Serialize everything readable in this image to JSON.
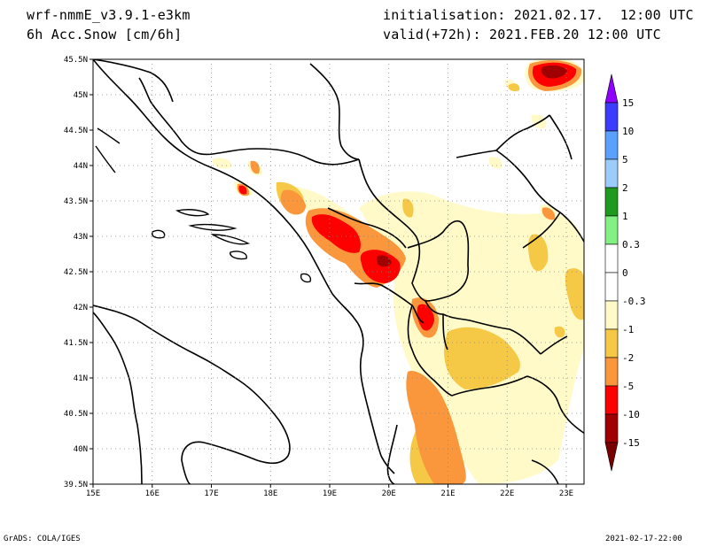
{
  "header": {
    "model": "wrf-nmmE_v3.9.1-e3km",
    "field": "6h Acc.Snow [cm/6h]",
    "init": "initialisation: 2021.02.17.  12:00 UTC",
    "valid": "valid(+72h): 2021.FEB.20 12:00 UTC"
  },
  "footer": {
    "left": "GrADS: COLA/IGES",
    "right": "2021-02-17-22:00"
  },
  "map": {
    "lon_range": [
      15,
      23.3
    ],
    "lat_range": [
      39.5,
      45.5
    ],
    "x_ticks": [
      {
        "v": 15,
        "label": "15E"
      },
      {
        "v": 16,
        "label": "16E"
      },
      {
        "v": 17,
        "label": "17E"
      },
      {
        "v": 18,
        "label": "18E"
      },
      {
        "v": 19,
        "label": "19E"
      },
      {
        "v": 20,
        "label": "20E"
      },
      {
        "v": 21,
        "label": "21E"
      },
      {
        "v": 22,
        "label": "22E"
      },
      {
        "v": 23,
        "label": "23E"
      }
    ],
    "y_ticks": [
      {
        "v": 39.5,
        "label": "39.5N"
      },
      {
        "v": 40,
        "label": "40N"
      },
      {
        "v": 40.5,
        "label": "40.5N"
      },
      {
        "v": 41,
        "label": "41N"
      },
      {
        "v": 41.5,
        "label": "41.5N"
      },
      {
        "v": 42,
        "label": "42N"
      },
      {
        "v": 42.5,
        "label": "42.5N"
      },
      {
        "v": 43,
        "label": "43N"
      },
      {
        "v": 43.5,
        "label": "43.5N"
      },
      {
        "v": 44,
        "label": "44N"
      },
      {
        "v": 44.5,
        "label": "44.5N"
      },
      {
        "v": 45,
        "label": "45N"
      },
      {
        "v": 45.5,
        "label": "45.5N"
      }
    ],
    "grid": "dotted"
  },
  "colorbar": {
    "segments": [
      {
        "color": "#8f00ff"
      },
      {
        "color": "#3c3cff"
      },
      {
        "color": "#5aa0ff"
      },
      {
        "color": "#9ccdfa"
      },
      {
        "color": "#1e9b1e"
      },
      {
        "color": "#82f082"
      },
      {
        "color": "#ffffff"
      },
      {
        "color": "#ffffff"
      },
      {
        "color": "#fffac8"
      },
      {
        "color": "#f5c846"
      },
      {
        "color": "#fa963c"
      },
      {
        "color": "#ff0000"
      },
      {
        "color": "#a00000"
      },
      {
        "color": "#780000"
      }
    ],
    "labels": [
      "15",
      "10",
      "5",
      "2",
      "1",
      "0.3",
      "0",
      "-0.3",
      "-1",
      "-2",
      "-5",
      "-10",
      "-15"
    ]
  },
  "snow_colors": {
    "c03": "#fffac8",
    "c1": "#f5c846",
    "c2": "#fa963c",
    "c5": "#ff0000",
    "c10": "#a00000"
  }
}
